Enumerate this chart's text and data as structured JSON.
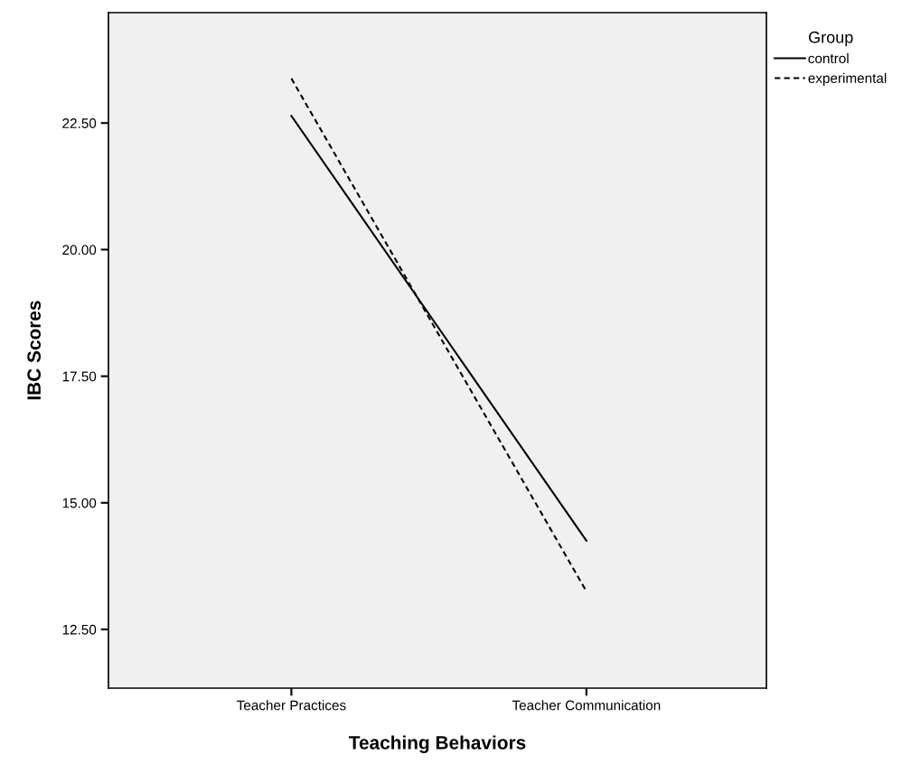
{
  "chart_data": {
    "type": "line",
    "xlabel": "Teaching Behaviors",
    "ylabel": "IBC Scores",
    "legend_title": "Group",
    "categories": [
      "Teacher Practices",
      "Teacher Communication"
    ],
    "series": [
      {
        "name": "control",
        "color": "#000000",
        "values": [
          22.64,
          14.25
        ],
        "line_style": "solid"
      },
      {
        "name": "experimental",
        "color": "#000000",
        "values": [
          23.38,
          13.25
        ],
        "line_style": "dashed"
      }
    ],
    "ylim": [
      11.34,
      24.68
    ],
    "yticks": [
      {
        "value": 12.5,
        "label": "12.50"
      },
      {
        "value": 15,
        "label": "15.00"
      },
      {
        "value": 17.5,
        "label": "17.50"
      },
      {
        "value": 20,
        "label": "20.00"
      },
      {
        "value": 22.5,
        "label": "22.50"
      }
    ],
    "grid": false,
    "legend": "top right",
    "marker": "none"
  }
}
